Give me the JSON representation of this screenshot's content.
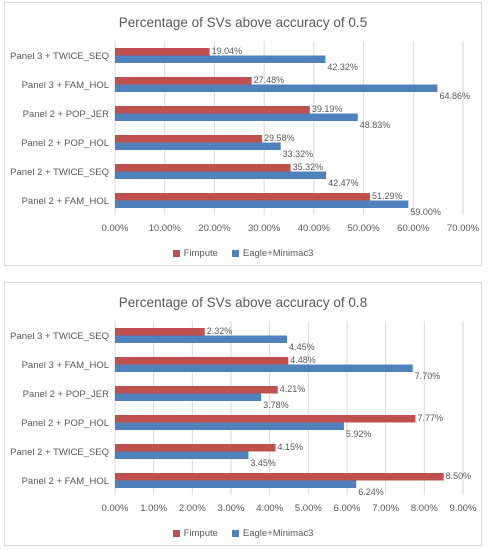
{
  "colors": {
    "fimpute": "#C0504D",
    "eagle": "#4F81BD",
    "grid": "#d9d9d9",
    "text": "#595959"
  },
  "chart_data": [
    {
      "type": "bar",
      "orientation": "horizontal",
      "title": "Percentage of SVs above accuracy of 0.5",
      "categories": [
        "Panel 2 + FAM_HOL",
        "Panel 2 + TWICE_SEQ",
        "Panel 2 + POP_HOL",
        "Panel 2 + POP_JER",
        "Panel 3 + FAM_HOL",
        "Panel 3 + TWICE_SEQ"
      ],
      "series": [
        {
          "name": "Fimpute",
          "values": [
            51.29,
            35.32,
            29.58,
            39.19,
            27.48,
            19.04
          ],
          "labels": [
            "51.29%",
            "35.32%",
            "29.58%",
            "39.19%",
            "27.48%",
            "19.04%"
          ]
        },
        {
          "name": "Eagle+Minimac3",
          "values": [
            59.0,
            42.47,
            33.32,
            48.83,
            64.86,
            42.32
          ],
          "labels": [
            "59.00%",
            "42.47%",
            "33.32%",
            "48.83%",
            "64.86%",
            "42.32%"
          ]
        }
      ],
      "xlim": [
        0,
        70
      ],
      "ticks": [
        "0.00%",
        "10.00%",
        "20.00%",
        "30.00%",
        "40.00%",
        "50.00%",
        "60.00%",
        "70.00%"
      ],
      "grid": true,
      "legend": "bottom"
    },
    {
      "type": "bar",
      "orientation": "horizontal",
      "title": "Percentage of SVs above accuracy of 0.8",
      "categories": [
        "Panel 2 + FAM_HOL",
        "Panel 2 + TWICE_SEQ",
        "Panel 2 + POP_HOL",
        "Panel 2 + POP_JER",
        "Panel 3 + FAM_HOL",
        "Panel 3 + TWICE_SEQ"
      ],
      "series": [
        {
          "name": "Fimpute",
          "values": [
            8.5,
            4.15,
            7.77,
            4.21,
            4.48,
            2.32
          ],
          "labels": [
            "8.50%",
            "4.15%",
            "7.77%",
            "4.21%",
            "4.48%",
            "2.32%"
          ]
        },
        {
          "name": "Eagle+Minimac3",
          "values": [
            6.24,
            3.45,
            5.92,
            3.78,
            7.7,
            4.45
          ],
          "labels": [
            "6.24%",
            "3.45%",
            "5.92%",
            "3.78%",
            "7.70%",
            "4.45%"
          ]
        }
      ],
      "xlim": [
        0,
        9
      ],
      "ticks": [
        "0.00%",
        "1.00%",
        "2.00%",
        "3.00%",
        "4.00%",
        "5.00%",
        "6.00%",
        "7.00%",
        "8.00%",
        "9.00%"
      ],
      "grid": true,
      "legend": "bottom"
    }
  ]
}
